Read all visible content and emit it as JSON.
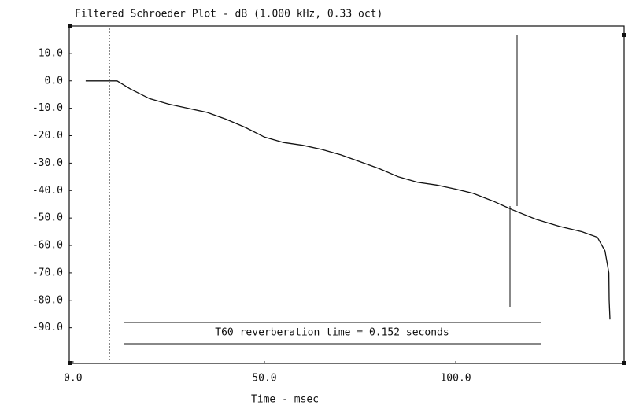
{
  "chart_data": {
    "type": "line",
    "title": "Filtered Schroeder Plot - dB (1.000 kHz, 0.33 oct)",
    "x_label": "Time - msec",
    "annotation": "T60 reverberation time = 0.152 seconds",
    "xlim": [
      -1,
      144
    ],
    "ylim": [
      -103,
      20
    ],
    "xticks": [
      {
        "value": 0,
        "label": "0.0"
      },
      {
        "value": 50,
        "label": "50.0"
      },
      {
        "value": 100,
        "label": "100.0"
      }
    ],
    "yticks": [
      {
        "value": 10,
        "label": "10.0"
      },
      {
        "value": 0,
        "label": "0.0"
      },
      {
        "value": -10,
        "label": "-10.0"
      },
      {
        "value": -20,
        "label": "-20.0"
      },
      {
        "value": -30,
        "label": "-30.0"
      },
      {
        "value": -40,
        "label": "-40.0"
      },
      {
        "value": -50,
        "label": "-50.0"
      },
      {
        "value": -60,
        "label": "-60.0"
      },
      {
        "value": -70,
        "label": "-70.0"
      },
      {
        "value": -80,
        "label": "-80.0"
      },
      {
        "value": -90,
        "label": "-90.0"
      }
    ],
    "series": [
      {
        "color": "#111111",
        "x": [
          3.3,
          11.5,
          15,
          20,
          25,
          30,
          35,
          40,
          45,
          50,
          55,
          60,
          65,
          70,
          75,
          80,
          85,
          90,
          95,
          100,
          104.5,
          110,
          114.8,
          121,
          127,
          133,
          137,
          139,
          140,
          140.1,
          140.3
        ],
        "values": [
          0,
          0,
          -3,
          -6.5,
          -8.5,
          -10,
          -11.5,
          -14,
          -17,
          -20.5,
          -22.5,
          -23.5,
          -25,
          -27,
          -29.5,
          -32,
          -35,
          -37,
          -38,
          -39.5,
          -41,
          -44,
          -47,
          -50.5,
          -53,
          -55,
          -57,
          -62,
          -70,
          -80,
          -87
        ]
      }
    ]
  }
}
